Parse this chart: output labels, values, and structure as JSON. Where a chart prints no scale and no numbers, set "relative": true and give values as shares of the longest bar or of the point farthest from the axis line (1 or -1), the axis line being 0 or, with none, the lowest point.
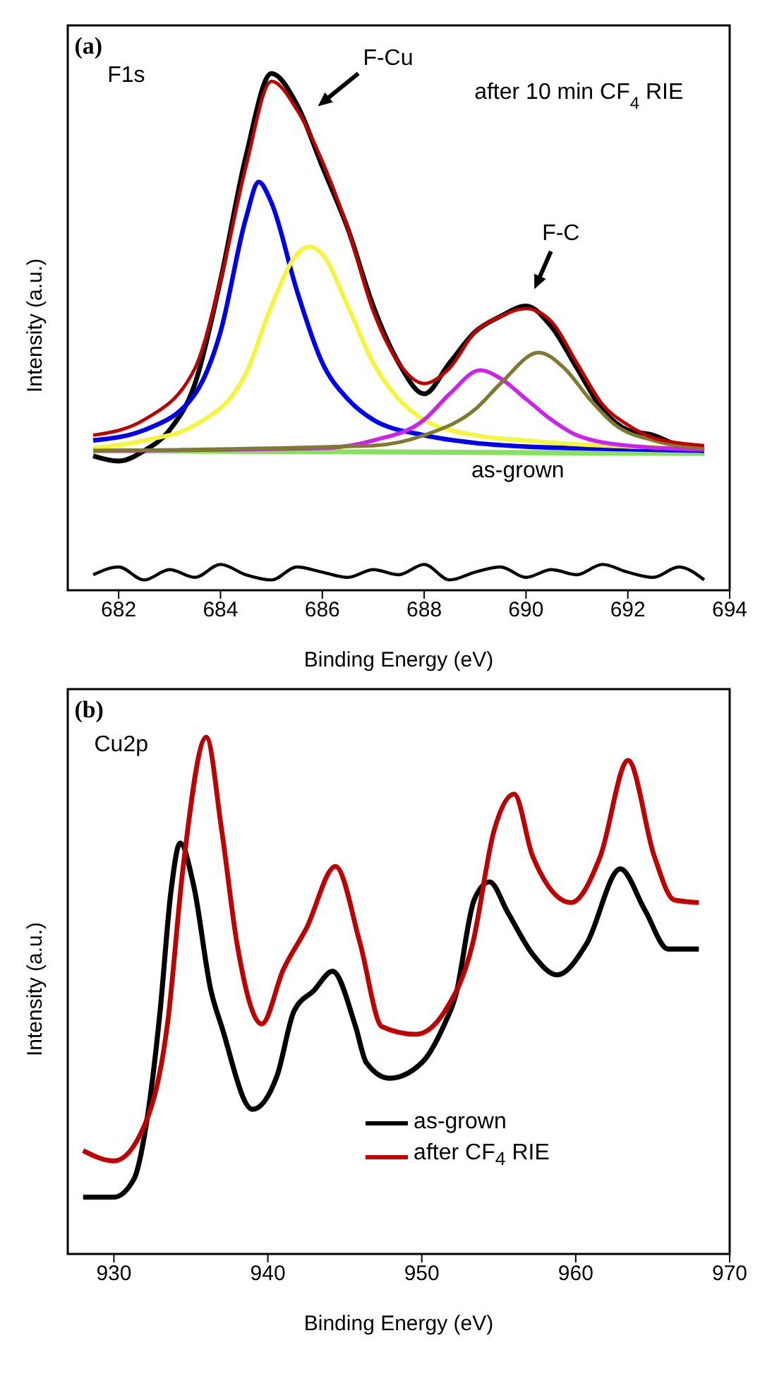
{
  "chart_data": [
    {
      "type": "line",
      "relative": true,
      "xlabel": "Binding Energy (eV)",
      "ylabel": "Intensity (a.u.)",
      "xlim": [
        681,
        694
      ],
      "xticks": [
        682,
        684,
        686,
        688,
        690,
        692,
        694
      ],
      "legend": false,
      "annotations": [
        "(a)",
        "F1s",
        "after 10 min CF$_{4}$ RIE",
        "as-grown",
        "F-Cu",
        "F-C"
      ],
      "series": [
        {
          "color": "#88e060",
          "x": [
            681.5,
            693.5
          ],
          "values": [
            0.27,
            0.265
          ]
        },
        {
          "color": "#000000",
          "x": [
            681.5,
            682,
            682.5,
            683,
            683.5,
            684,
            684.5,
            685,
            685.5,
            686,
            686.5,
            687,
            687.5,
            688,
            688.5,
            689,
            689.5,
            690,
            690.5,
            691,
            691.5,
            692,
            692.5,
            693,
            693.5
          ],
          "values": [
            0.26,
            0.25,
            0.27,
            0.31,
            0.4,
            0.6,
            0.84,
            1.0,
            0.94,
            0.82,
            0.7,
            0.55,
            0.44,
            0.38,
            0.44,
            0.5,
            0.53,
            0.55,
            0.51,
            0.43,
            0.35,
            0.31,
            0.3,
            0.28,
            0.27
          ]
        },
        {
          "color": "#0000ee",
          "x": [
            681.5,
            682.5,
            683.5,
            684,
            684.5,
            684.75,
            685,
            685.5,
            686,
            686.5,
            687,
            688,
            689,
            690,
            691,
            693.5
          ],
          "values": [
            0.29,
            0.31,
            0.38,
            0.5,
            0.72,
            0.79,
            0.75,
            0.58,
            0.44,
            0.37,
            0.33,
            0.3,
            0.285,
            0.278,
            0.275,
            0.27
          ]
        },
        {
          "color": "#f5f53a",
          "x": [
            681.5,
            682.5,
            683.5,
            684.5,
            685,
            685.5,
            685.75,
            686,
            686.5,
            687,
            687.5,
            688,
            689,
            690,
            691.5,
            693.5
          ],
          "values": [
            0.275,
            0.29,
            0.32,
            0.42,
            0.55,
            0.65,
            0.665,
            0.65,
            0.55,
            0.44,
            0.37,
            0.33,
            0.3,
            0.29,
            0.28,
            0.275
          ]
        },
        {
          "color": "#cc22ee",
          "x": [
            681.5,
            686,
            687,
            688,
            688.5,
            689.1,
            689.5,
            690,
            690.5,
            691,
            692,
            693.5
          ],
          "values": [
            0.27,
            0.275,
            0.29,
            0.33,
            0.38,
            0.426,
            0.41,
            0.37,
            0.33,
            0.3,
            0.28,
            0.272
          ]
        },
        {
          "color": "#7f7a30",
          "x": [
            681.5,
            687,
            688,
            689,
            689.5,
            690.25,
            690.75,
            691.25,
            691.75,
            692.5,
            693.5
          ],
          "values": [
            0.27,
            0.28,
            0.3,
            0.35,
            0.4,
            0.46,
            0.43,
            0.37,
            0.32,
            0.29,
            0.275
          ]
        },
        {
          "color": "#c00000",
          "x": [
            681.5,
            682.5,
            683.5,
            684,
            684.5,
            685,
            685.5,
            686,
            686.5,
            687,
            687.5,
            688,
            688.5,
            689,
            689.5,
            690,
            690.5,
            691,
            691.5,
            692,
            692.5,
            693,
            693.5
          ],
          "values": [
            0.3,
            0.33,
            0.43,
            0.6,
            0.82,
            0.985,
            0.93,
            0.83,
            0.7,
            0.54,
            0.44,
            0.4,
            0.43,
            0.5,
            0.53,
            0.545,
            0.52,
            0.44,
            0.36,
            0.32,
            0.295,
            0.285,
            0.28
          ]
        },
        {
          "color": "#000000",
          "x": [
            681.5,
            682,
            682.5,
            683,
            683.5,
            684,
            684.5,
            685,
            685.5,
            686,
            686.5,
            687,
            687.5,
            688,
            688.5,
            689,
            689.5,
            690,
            690.5,
            691,
            691.5,
            692,
            692.5,
            693,
            693.5
          ],
          "values": [
            0.03,
            0.045,
            0.02,
            0.04,
            0.025,
            0.05,
            0.03,
            0.02,
            0.045,
            0.035,
            0.025,
            0.04,
            0.03,
            0.05,
            0.02,
            0.035,
            0.045,
            0.025,
            0.04,
            0.03,
            0.05,
            0.035,
            0.025,
            0.045,
            0.02
          ]
        }
      ]
    },
    {
      "type": "line",
      "relative": true,
      "xlabel": "Binding Energy (eV)",
      "ylabel": "Intensity (a.u.)",
      "xlim": [
        927,
        970
      ],
      "xticks": [
        930,
        940,
        950,
        960,
        970
      ],
      "legend": "bottom right",
      "annotations": [
        "(b)",
        "Cu2p"
      ],
      "series": [
        {
          "name": "as-grown",
          "color": "#000000",
          "x": [
            928,
            930,
            931.3,
            932.2,
            933,
            933.7,
            934.3,
            935.2,
            936.3,
            937,
            939,
            940.6,
            941.7,
            943,
            944.2,
            945.7,
            946.4,
            947.9,
            950,
            951.4,
            952.2,
            953.4,
            954.4,
            955.6,
            957.2,
            958.8,
            960.7,
            962.9,
            964.5,
            966,
            968
          ],
          "values": [
            0.11,
            0.11,
            0.145,
            0.27,
            0.47,
            0.7,
            0.795,
            0.71,
            0.51,
            0.44,
            0.28,
            0.345,
            0.47,
            0.51,
            0.547,
            0.44,
            0.37,
            0.34,
            0.37,
            0.44,
            0.5,
            0.685,
            0.72,
            0.66,
            0.58,
            0.54,
            0.6,
            0.745,
            0.665,
            0.59,
            0.59
          ]
        },
        {
          "name": "after CF$_{4}$ RIE",
          "color": "#c00000",
          "x": [
            928,
            930,
            932,
            933.5,
            934.5,
            936,
            937,
            938,
            939.6,
            941,
            942.5,
            944.4,
            946,
            947.4,
            949.6,
            951.5,
            953.3,
            954.7,
            956,
            957.2,
            959.7,
            961.6,
            963.4,
            965.1,
            966.4,
            968
          ],
          "values": [
            0.2,
            0.18,
            0.25,
            0.45,
            0.75,
            1.0,
            0.82,
            0.6,
            0.445,
            0.55,
            0.63,
            0.75,
            0.6,
            0.44,
            0.425,
            0.47,
            0.6,
            0.82,
            0.89,
            0.77,
            0.68,
            0.77,
            0.955,
            0.77,
            0.685,
            0.68
          ]
        }
      ]
    }
  ]
}
